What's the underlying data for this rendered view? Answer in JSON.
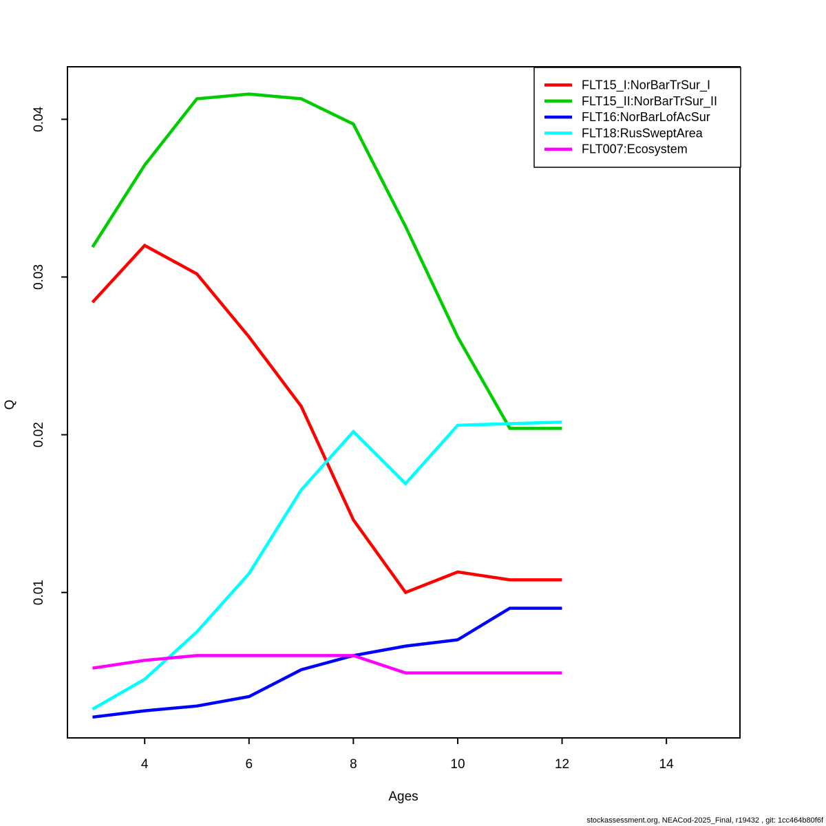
{
  "figure": {
    "background": "#FFFFFF",
    "footer": "stockassessment.org, NEACod-2025_Final, r19432 , git: 1cc464b80f6f"
  },
  "chart_data": {
    "type": "line",
    "title": "",
    "xlabel": "Ages",
    "ylabel": "Q",
    "x": [
      3,
      4,
      5,
      6,
      7,
      8,
      9,
      10,
      11,
      12
    ],
    "series": [
      {
        "name": "FLT15_I:NorBarTrSur_I",
        "color": "#FF0000",
        "values": [
          0.0284,
          0.032,
          0.0302,
          0.0262,
          0.0218,
          0.0146,
          0.01,
          0.0113,
          0.0108,
          0.0108
        ]
      },
      {
        "name": "FLT15_II:NorBarTrSur_II",
        "color": "#00CD00",
        "values": [
          0.0319,
          0.0371,
          0.0413,
          0.0416,
          0.0413,
          0.0397,
          0.0332,
          0.0262,
          0.0204,
          0.0204
        ]
      },
      {
        "name": "FLT16:NorBarLofAcSur",
        "color": "#0000FF",
        "values": [
          0.0021,
          0.0025,
          0.0028,
          0.0034,
          0.0051,
          0.006,
          0.0066,
          0.007,
          0.009,
          0.009
        ]
      },
      {
        "name": "FLT18:RusSweptArea",
        "color": "#00FFFF",
        "values": [
          0.0026,
          0.0045,
          0.0075,
          0.0112,
          0.0165,
          0.0202,
          0.0169,
          0.0206,
          0.0207,
          0.0208
        ]
      },
      {
        "name": "FLT007:Ecosystem",
        "color": "#FF00FF",
        "values": [
          0.0052,
          0.0057,
          0.006,
          0.006,
          0.006,
          0.006,
          0.0049,
          0.0049,
          0.0049,
          0.0049
        ]
      }
    ],
    "x_ticks": [
      4,
      6,
      8,
      10,
      12,
      14
    ],
    "x_tick_labels": [
      "4",
      "6",
      "8",
      "10",
      "12",
      "14"
    ],
    "y_ticks": [
      0.01,
      0.02,
      0.03,
      0.04
    ],
    "y_tick_labels": [
      "0.01",
      "0.02",
      "0.03",
      "0.04"
    ],
    "xlim": [
      2.52,
      15.41
    ],
    "ylim": [
      0.00078,
      0.04333
    ],
    "grid": false,
    "legend_position": "top-right"
  }
}
